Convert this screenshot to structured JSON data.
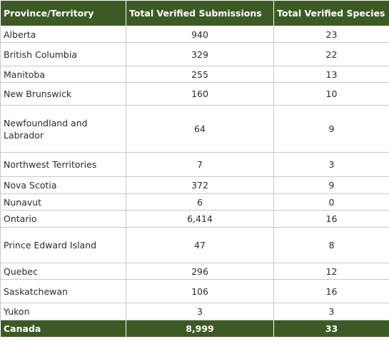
{
  "table": {
    "headers": [
      "Province/Territory",
      "Total Verified Submissions",
      "Total Verified Species"
    ],
    "rows": [
      {
        "region": "Alberta",
        "submissions": "940",
        "species": "23"
      },
      {
        "region": "British Columbia",
        "submissions": "329",
        "species": "22"
      },
      {
        "region": "Manitoba",
        "submissions": "255",
        "species": "13"
      },
      {
        "region": "New Brunswick",
        "submissions": "160",
        "species": "10"
      },
      {
        "region": "Newfoundland and Labrador",
        "submissions": "64",
        "species": "9"
      },
      {
        "region": "Northwest Territories",
        "submissions": "7",
        "species": "3"
      },
      {
        "region": "Nova Scotia",
        "submissions": "372",
        "species": "9"
      },
      {
        "region": "Nunavut",
        "submissions": "6",
        "species": "0"
      },
      {
        "region": "Ontario",
        "submissions": "6,414",
        "species": "16"
      },
      {
        "region": "Prince Edward Island",
        "submissions": "47",
        "species": "8"
      },
      {
        "region": "Quebec",
        "submissions": "296",
        "species": "12"
      },
      {
        "region": "Saskatchewan",
        "submissions": "106",
        "species": "16"
      },
      {
        "region": "Yukon",
        "submissions": "3",
        "species": "3"
      }
    ],
    "total": {
      "region": "Canada",
      "submissions": "8,999",
      "species": "33"
    }
  },
  "colors": {
    "header_bg": "#3d5a25",
    "header_text": "#ffffff",
    "border": "#c9c9c9"
  }
}
